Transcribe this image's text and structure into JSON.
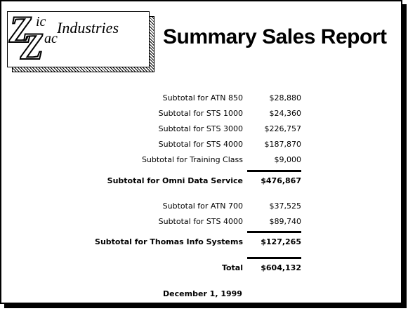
{
  "logo": {
    "z_top": "Z",
    "ic": "ic",
    "z_bottom": "Z",
    "ac": "ac",
    "industries": "Industries"
  },
  "title": "Summary Sales Report",
  "groups": [
    {
      "items": [
        {
          "label": "Subtotal for ATN 850",
          "amount": "$28,880"
        },
        {
          "label": "Subtotal for STS 1000",
          "amount": "$24,360"
        },
        {
          "label": "Subtotal for STS 3000",
          "amount": "$226,757"
        },
        {
          "label": "Subtotal for STS 4000",
          "amount": "$187,870"
        },
        {
          "label": "Subtotal for Training Class",
          "amount": "$9,000"
        }
      ],
      "subtotal": {
        "label": "Subtotal for Omni Data Service",
        "amount": "$476,867"
      }
    },
    {
      "items": [
        {
          "label": "Subtotal for ATN 700",
          "amount": "$37,525"
        },
        {
          "label": "Subtotal for STS 4000",
          "amount": "$89,740"
        }
      ],
      "subtotal": {
        "label": "Subtotal for Thomas Info Systems",
        "amount": "$127,265"
      }
    }
  ],
  "total": {
    "label": "Total",
    "amount": "$604,132"
  },
  "date": "December 1, 1999"
}
